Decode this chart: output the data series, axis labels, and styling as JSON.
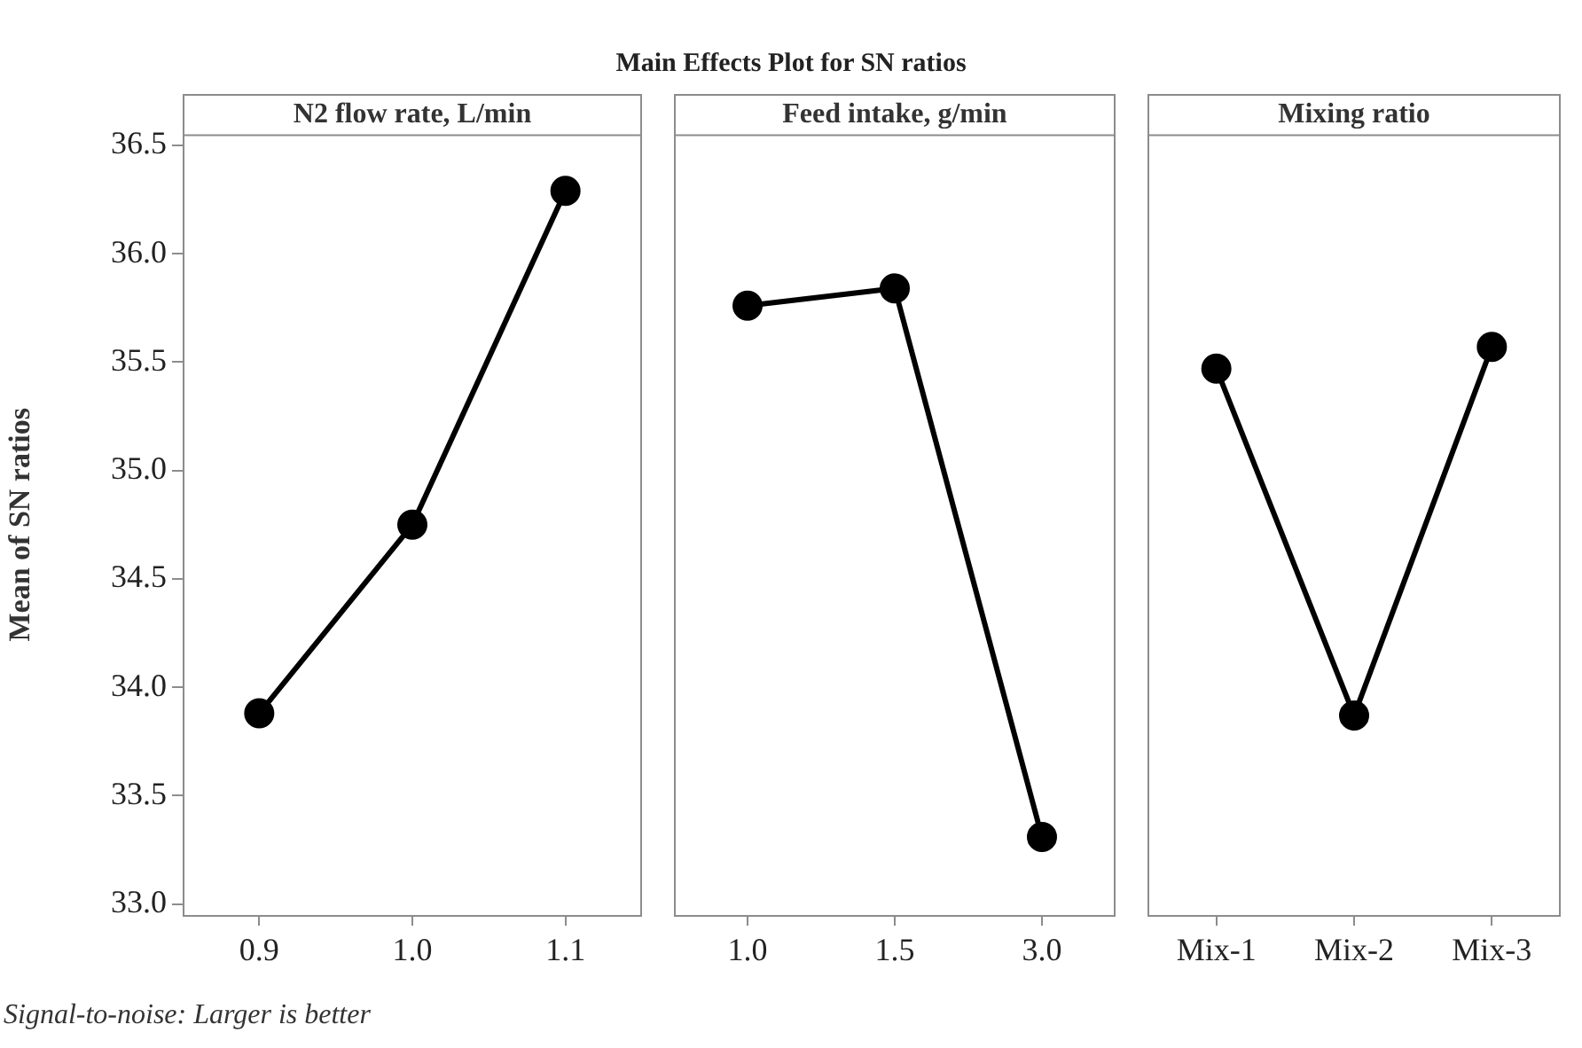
{
  "chart_data": [
    {
      "type": "line",
      "title": "N2 flow rate, L/min",
      "ylabel": "Mean of SN ratios",
      "annotations": [
        "Main Effects Plot for SN ratios",
        "Signal-to-noise: Larger is better"
      ],
      "categories": [
        "0.9",
        "1.0",
        "1.1"
      ],
      "series": [
        {
          "color": "#000000",
          "values": [
            33.88,
            34.75,
            36.29
          ]
        }
      ],
      "ylim": [
        32.95,
        36.55
      ],
      "yticks": [
        {
          "value": 33,
          "label": "33.0"
        },
        {
          "value": 33.5,
          "label": "33.5"
        },
        {
          "value": 34,
          "label": "34.0"
        },
        {
          "value": 34.5,
          "label": "34.5"
        },
        {
          "value": 35,
          "label": "35.0"
        },
        {
          "value": 35.5,
          "label": "35.5"
        },
        {
          "value": 36,
          "label": "36.0"
        },
        {
          "value": 36.5,
          "label": "36.5"
        }
      ],
      "grid": false,
      "legend": false,
      "marker": "circle",
      "line_style": "solid"
    },
    {
      "type": "line",
      "title": "Feed intake, g/min",
      "categories": [
        "1.0",
        "1.5",
        "3.0"
      ],
      "series": [
        {
          "color": "#000000",
          "values": [
            35.76,
            35.84,
            33.31
          ]
        }
      ],
      "ylim": [
        32.95,
        36.55
      ],
      "tick_labels": "x",
      "grid": false,
      "legend": false,
      "marker": "circle",
      "line_style": "solid"
    },
    {
      "type": "line",
      "title": "Mixing ratio",
      "categories": [
        "Mix-1",
        "Mix-2",
        "Mix-3"
      ],
      "series": [
        {
          "color": "#000000",
          "values": [
            35.47,
            33.87,
            35.57
          ]
        }
      ],
      "ylim": [
        32.95,
        36.55
      ],
      "tick_labels": "x",
      "grid": false,
      "legend": false,
      "marker": "circle",
      "line_style": "solid"
    }
  ]
}
